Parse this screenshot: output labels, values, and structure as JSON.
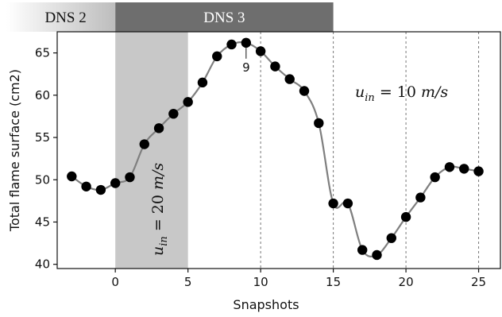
{
  "chart_data": {
    "type": "line",
    "xlabel": "Snapshots",
    "ylabel": "Total flame surface (cm2)",
    "xlim": [
      -4,
      26.5
    ],
    "ylim": [
      39.5,
      67.5
    ],
    "xticks": [
      0,
      5,
      10,
      15,
      20,
      25
    ],
    "yticks": [
      40,
      45,
      50,
      55,
      60,
      65
    ],
    "grid": false,
    "series": [
      {
        "x": [
          -3,
          -2,
          -1,
          0,
          1,
          2,
          3,
          4,
          5,
          6,
          7,
          8,
          9,
          10,
          11,
          12,
          13,
          14,
          15,
          16,
          17,
          18,
          19,
          20,
          21,
          22,
          23,
          24,
          25
        ],
        "values": [
          50.4,
          49.2,
          48.8,
          49.6,
          50.3,
          54.2,
          56.1,
          57.8,
          59.2,
          61.5,
          64.6,
          66.0,
          66.2,
          65.2,
          63.4,
          61.9,
          60.5,
          56.7,
          47.2,
          47.2,
          41.7,
          41.1,
          43.1,
          45.6,
          47.9,
          50.3,
          51.5,
          51.3,
          51.0
        ],
        "color": "#7f7f7f",
        "marker_color": "#000000"
      }
    ],
    "vlines": [
      10,
      15,
      20,
      25
    ],
    "shaded_region": {
      "x": [
        0,
        5
      ],
      "color": "#c8c8c8"
    },
    "banner": [
      {
        "label": "DNS 2",
        "x": [
          -4,
          0
        ],
        "style": "gradient"
      },
      {
        "label": "DNS 3",
        "x": [
          0,
          15
        ],
        "color": "#6e6e6e"
      }
    ],
    "annotations": {
      "peak_label": {
        "text": "9",
        "x": 9
      },
      "u_in_10": {
        "u": "u",
        "sub": "in",
        "rest": " = 10 ",
        "unit": "m/s"
      },
      "u_in_20": {
        "u": "u",
        "sub": "in",
        "rest": " = 20 ",
        "unit": "m/s"
      }
    }
  }
}
